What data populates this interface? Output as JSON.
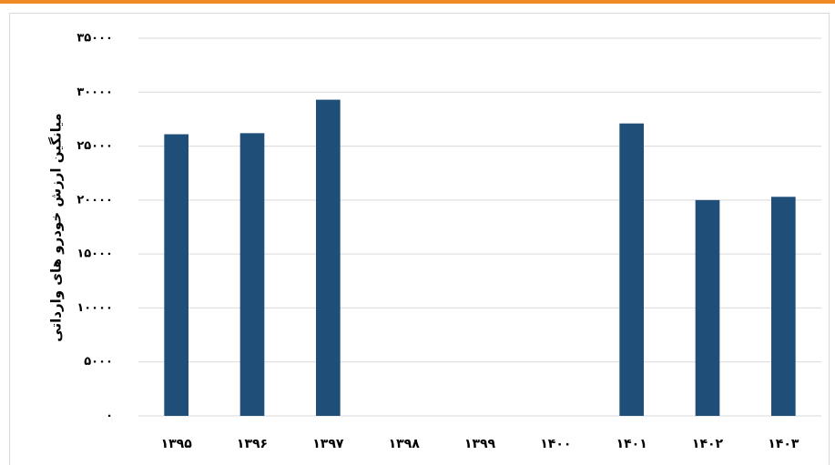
{
  "chart_data": {
    "type": "bar",
    "y_label": "میانگین ارزش خودرو های وارداتی",
    "categories": [
      "۱۳۹۵",
      "۱۳۹۶",
      "۱۳۹۷",
      "۱۳۹۸",
      "۱۳۹۹",
      "۱۴۰۰",
      "۱۴۰۱",
      "۱۴۰۲",
      "۱۴۰۳"
    ],
    "values": [
      26100,
      26200,
      29300,
      null,
      null,
      null,
      27100,
      20000,
      20300
    ],
    "color": "#1f4e79",
    "ylim": [
      0,
      35000
    ],
    "yticks": [
      {
        "value": 0,
        "label": "۰"
      },
      {
        "value": 5000,
        "label": "۵۰۰۰"
      },
      {
        "value": 10000,
        "label": "۱۰۰۰۰"
      },
      {
        "value": 15000,
        "label": "۱۵۰۰۰"
      },
      {
        "value": 20000,
        "label": "۲۰۰۰۰"
      },
      {
        "value": 25000,
        "label": "۲۵۰۰۰"
      },
      {
        "value": 30000,
        "label": "۳۰۰۰۰"
      },
      {
        "value": 35000,
        "label": "۳۵۰۰۰"
      }
    ],
    "grid": true
  }
}
